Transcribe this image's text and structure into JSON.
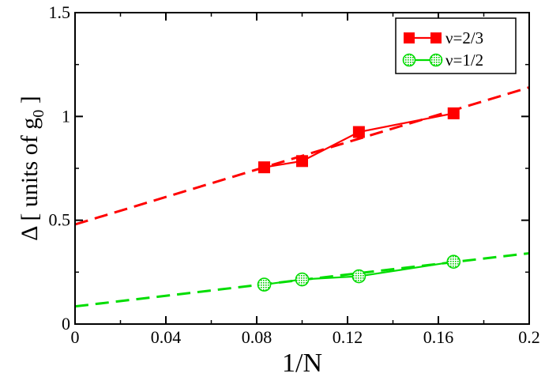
{
  "chart_data": {
    "type": "line",
    "xlabel": "1/N",
    "ylabel": {
      "prefix": "Δ [ units of g",
      "subscript": "0",
      "suffix": " ]"
    },
    "xlim": [
      0,
      0.2
    ],
    "ylim": [
      0,
      1.5
    ],
    "x_ticks": [
      {
        "value": 0,
        "label": "0"
      },
      {
        "value": 0.04,
        "label": "0.04"
      },
      {
        "value": 0.08,
        "label": "0.08"
      },
      {
        "value": 0.12,
        "label": "0.12"
      },
      {
        "value": 0.16,
        "label": "0.16"
      },
      {
        "value": 0.2,
        "label": "0.2"
      }
    ],
    "y_ticks": [
      {
        "value": 0,
        "label": "0"
      },
      {
        "value": 0.5,
        "label": "0.5"
      },
      {
        "value": 1,
        "label": "1"
      },
      {
        "value": 1.5,
        "label": "1.5"
      }
    ],
    "grid": false,
    "legend_position": "top-right",
    "series": [
      {
        "name": "ν=2/3",
        "color": "#ff0000",
        "marker": "square",
        "x": [
          0.0833,
          0.1,
          0.125,
          0.1667
        ],
        "y": [
          0.755,
          0.785,
          0.925,
          1.015
        ],
        "fit": {
          "intercept": 0.48,
          "slope": 3.3
        }
      },
      {
        "name": "ν=1/2",
        "color": "#00dd00",
        "marker_fill": "#b8e8b8",
        "marker": "circle",
        "x": [
          0.0833,
          0.1,
          0.125,
          0.1667
        ],
        "y": [
          0.19,
          0.215,
          0.23,
          0.3
        ],
        "fit": {
          "intercept": 0.085,
          "slope": 1.28
        }
      }
    ]
  }
}
